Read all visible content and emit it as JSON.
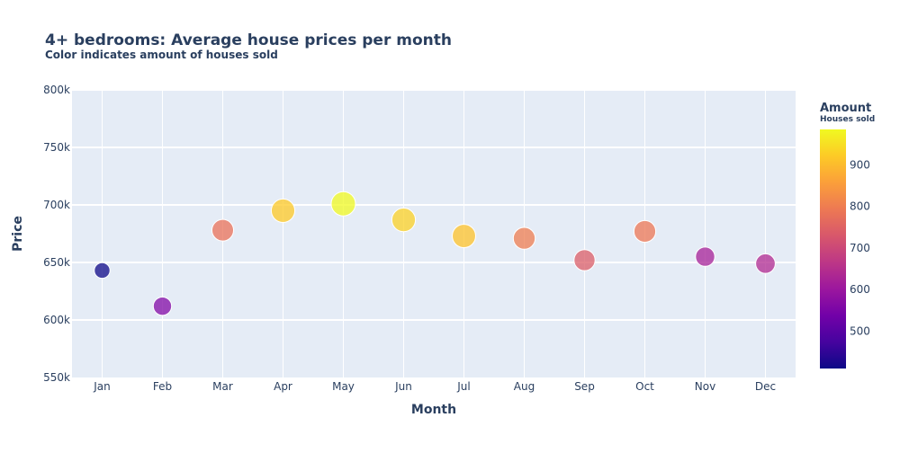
{
  "chart_data": {
    "type": "scatter",
    "title": "4+ bedrooms: Average house prices per month",
    "subtitle": "Color indicates amount of houses sold",
    "xlabel": "Month",
    "ylabel": "Price",
    "ylim": [
      550000,
      800000
    ],
    "y_ticks": [
      550000,
      600000,
      650000,
      700000,
      750000,
      800000
    ],
    "y_tick_labels": [
      "550k",
      "600k",
      "650k",
      "700k",
      "750k",
      "800k"
    ],
    "categories": [
      "Jan",
      "Feb",
      "Mar",
      "Apr",
      "May",
      "Jun",
      "Jul",
      "Aug",
      "Sep",
      "Oct",
      "Nov",
      "Dec"
    ],
    "values": [
      643000,
      612000,
      678000,
      695000,
      701000,
      687000,
      673000,
      671000,
      652000,
      677000,
      655000,
      649000
    ],
    "amounts": [
      410,
      560,
      780,
      920,
      985,
      930,
      910,
      800,
      740,
      790,
      620,
      640
    ],
    "grid": true,
    "colorbar": {
      "title": "Amount",
      "subtitle": "Houses sold",
      "range": [
        410,
        985
      ],
      "ticks": [
        500,
        600,
        700,
        800,
        900
      ],
      "tick_labels": [
        "500",
        "600",
        "700",
        "800",
        "900"
      ],
      "colorscale": [
        "#0d0887",
        "#46039f",
        "#7201a8",
        "#9c179e",
        "#bd3786",
        "#d8576b",
        "#ed7953",
        "#fb9f3a",
        "#fdca26",
        "#f0f921"
      ]
    },
    "colors": {
      "plot_bg": "#e5ecf6",
      "grid": "#ffffff",
      "text": "#2a3f5f",
      "tick_text": "#2a3f5f"
    }
  }
}
